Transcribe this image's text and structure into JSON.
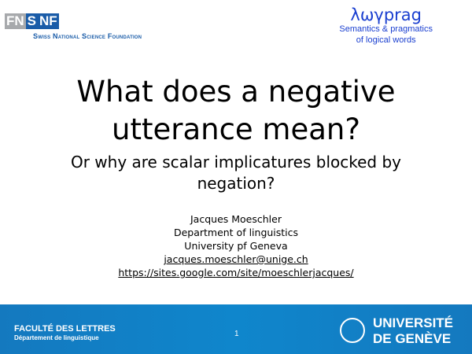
{
  "header": {
    "fnsnf_left": "FN",
    "fnsnf_s": "S",
    "fnsnf_right": "NF",
    "snsf": "Swiss National Science Foundation",
    "project_title": "λωγprag",
    "project_sub1": "Semantics & pragmatics",
    "project_sub2": "of logical words"
  },
  "slide": {
    "title_line1": "What does a negative",
    "title_line2": "utterance mean?",
    "subtitle": "Or why are scalar implicatures blocked by negation?",
    "author": "Jacques Moeschler",
    "dept": "Department of linguistics",
    "univ": "University pf Geneva",
    "email": "jacques.moeschler@unige.ch",
    "url": "https://sites.google.com/site/moeschlerjacques/"
  },
  "footer": {
    "faculty": "FACULTÉ DES LETTRES",
    "department": "Département de linguistique",
    "page": "1",
    "uni_line1": "UNIVERSITÉ",
    "uni_line2": "DE GENÈVE",
    "color": "#1479bf"
  }
}
